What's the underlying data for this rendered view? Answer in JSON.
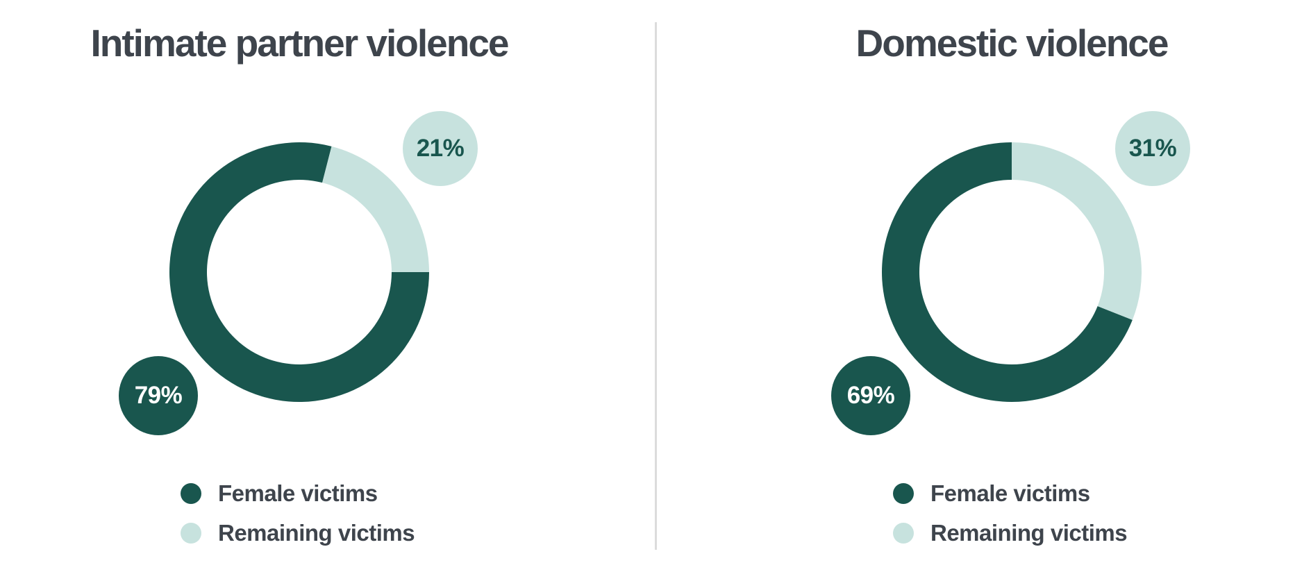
{
  "page": {
    "background": "#FFFFFF",
    "divider_color": "#DCDCDC",
    "text_color": "#3E444C"
  },
  "palette": {
    "dark_teal": "#19564E",
    "light_teal": "#C7E2DE",
    "badge_dark_text": "#FFFFFF"
  },
  "chart_data": [
    {
      "type": "pie",
      "donut": true,
      "title": "Intimate partner violence",
      "categories": [
        "Female victims",
        "Remaining victims"
      ],
      "values": [
        79,
        21
      ],
      "value_labels": [
        "79%",
        "21%"
      ],
      "slice_colors": [
        "#19564E",
        "#C7E2DE"
      ],
      "rotation_deg": 90,
      "legend_position": "bottom",
      "legend": [
        {
          "label": "Female victims",
          "color": "#19564E"
        },
        {
          "label": "Remaining victims",
          "color": "#C7E2DE"
        }
      ]
    },
    {
      "type": "pie",
      "donut": true,
      "title": "Domestic violence",
      "categories": [
        "Female victims",
        "Remaining victims"
      ],
      "values": [
        69,
        31
      ],
      "value_labels": [
        "69%",
        "31%"
      ],
      "slice_colors": [
        "#19564E",
        "#C7E2DE"
      ],
      "rotation_deg": 111.6,
      "legend_position": "bottom",
      "legend": [
        {
          "label": "Female victims",
          "color": "#19564E"
        },
        {
          "label": "Remaining victims",
          "color": "#C7E2DE"
        }
      ]
    }
  ]
}
